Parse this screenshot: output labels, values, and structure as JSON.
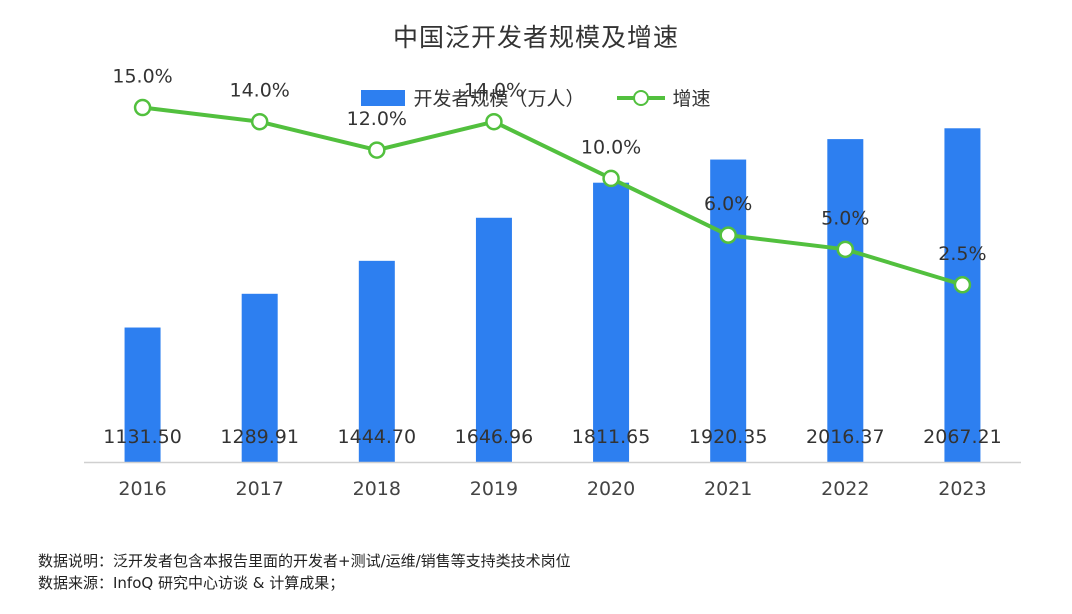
{
  "chart_data": {
    "type": "bar",
    "title": "中国泛开发者规模及增速",
    "categories": [
      "2016",
      "2017",
      "2018",
      "2019",
      "2020",
      "2021",
      "2022",
      "2023"
    ],
    "series": [
      {
        "name": "开发者规模（万人）",
        "type": "bar",
        "values": [
          1131.5,
          1289.91,
          1444.7,
          1646.96,
          1811.65,
          1920.35,
          2016.37,
          2067.21
        ],
        "labels": [
          "1131.50",
          "1289.91",
          "1444.70",
          "1646.96",
          "1811.65",
          "1920.35",
          "2016.37",
          "2067.21"
        ],
        "color": "#2D7FF0"
      },
      {
        "name": "增速",
        "type": "line",
        "values": [
          15.0,
          14.0,
          12.0,
          14.0,
          10.0,
          6.0,
          5.0,
          2.5
        ],
        "labels": [
          "15.0%",
          "14.0%",
          "12.0%",
          "14.0%",
          "10.0%",
          "6.0%",
          "5.0%",
          "2.5%"
        ],
        "color": "#52C03E"
      }
    ],
    "legend_position": "top-center",
    "grid": false,
    "bar_ylim": [
      500,
      2200
    ],
    "line_ylim": [
      -10,
      18
    ]
  },
  "notes": {
    "line1": "数据说明：泛开发者包含本报告里面的开发者+测试/运维/销售等支持类技术岗位",
    "line2": "数据来源：InfoQ 研究中心访谈 & 计算成果；"
  }
}
